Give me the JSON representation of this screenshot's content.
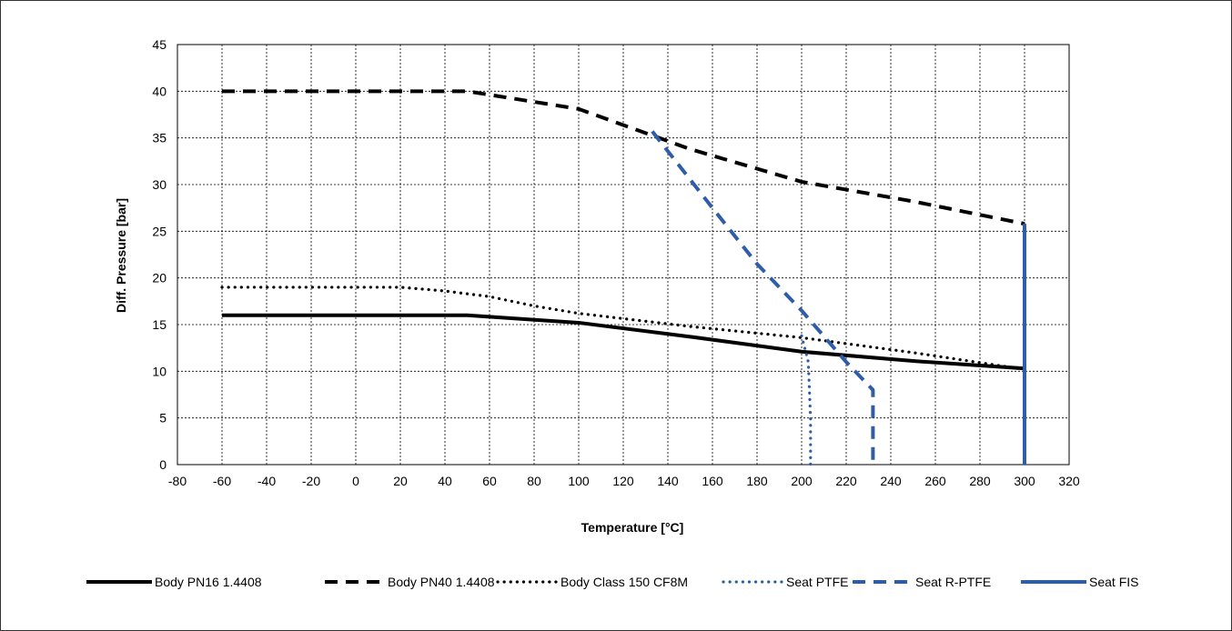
{
  "chart_data": {
    "type": "line",
    "title": "",
    "xlabel": "Temperature [°C]",
    "ylabel": "Diff. Pressure [bar]",
    "xlim": [
      -80,
      320
    ],
    "ylim": [
      0,
      45
    ],
    "x_ticks": [
      -80,
      -60,
      -40,
      -20,
      0,
      20,
      40,
      60,
      80,
      100,
      120,
      140,
      160,
      180,
      200,
      220,
      240,
      260,
      280,
      300,
      320
    ],
    "y_ticks": [
      0,
      5,
      10,
      15,
      20,
      25,
      30,
      35,
      40,
      45
    ],
    "x_tick_labels": [
      "-80",
      "-60",
      "-40",
      "-20",
      "0",
      "20",
      "40",
      "60",
      "80",
      "100",
      "120",
      "140",
      "160",
      "180",
      "200",
      "220",
      "240",
      "260",
      "280",
      "300",
      "320"
    ],
    "y_tick_labels": [
      "0",
      "5",
      "10",
      "15",
      "20",
      "25",
      "30",
      "35",
      "40",
      "45"
    ],
    "grid": true,
    "legend_position": "bottom",
    "series": [
      {
        "name": "Body PN16 1.4408",
        "style": "solid",
        "color": "#000000",
        "points": [
          [
            -60,
            16
          ],
          [
            50,
            16
          ],
          [
            100,
            15.2
          ],
          [
            150,
            13.7
          ],
          [
            200,
            12.1
          ],
          [
            250,
            11.1
          ],
          [
            300,
            10.3
          ]
        ]
      },
      {
        "name": "Body PN40 1.4408",
        "style": "dashed",
        "color": "#000000",
        "points": [
          [
            -60,
            40
          ],
          [
            50,
            40
          ],
          [
            100,
            38.1
          ],
          [
            150,
            33.8
          ],
          [
            200,
            30.3
          ],
          [
            250,
            28.2
          ],
          [
            300,
            25.8
          ]
        ]
      },
      {
        "name": "Body Class 150 CF8M",
        "style": "dotted",
        "color": "#000000",
        "points": [
          [
            -60,
            19
          ],
          [
            20,
            19
          ],
          [
            40,
            18.6
          ],
          [
            60,
            18
          ],
          [
            80,
            17
          ],
          [
            100,
            16.2
          ],
          [
            150,
            14.8
          ],
          [
            200,
            13.6
          ],
          [
            250,
            12
          ],
          [
            300,
            10.2
          ]
        ]
      },
      {
        "name": "Seat PTFE",
        "style": "dotted",
        "color": "#2f5da8",
        "points": [
          [
            200,
            13.8
          ],
          [
            203,
            11
          ],
          [
            204,
            5
          ],
          [
            204,
            0
          ]
        ]
      },
      {
        "name": "Seat R-PTFE",
        "style": "dashed",
        "color": "#2f5da8",
        "points": [
          [
            133,
            35.7
          ],
          [
            160,
            27.5
          ],
          [
            180,
            21.5
          ],
          [
            200,
            16.5
          ],
          [
            220,
            11
          ],
          [
            232,
            8
          ],
          [
            232,
            0
          ]
        ]
      },
      {
        "name": "Seat FIS",
        "style": "solid",
        "color": "#2f5da8",
        "points": [
          [
            300,
            25.8
          ],
          [
            300,
            0
          ]
        ]
      }
    ]
  }
}
